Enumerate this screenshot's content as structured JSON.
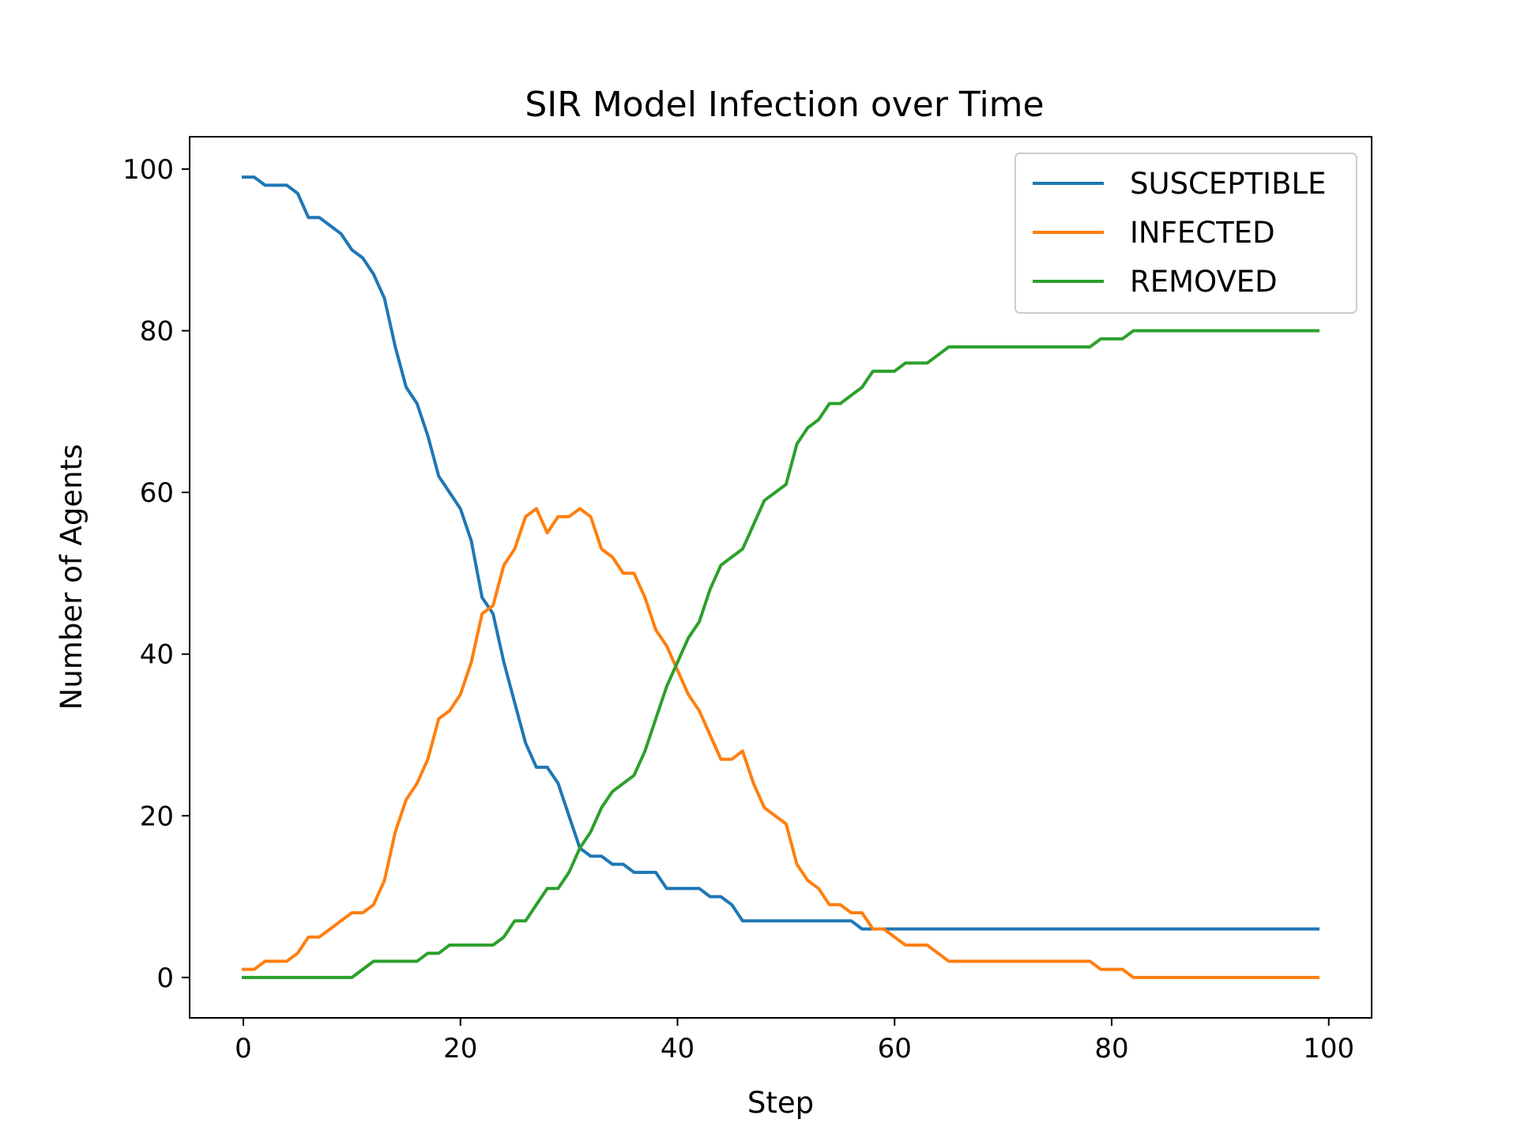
{
  "chart_data": {
    "type": "line",
    "title": "SIR Model Infection over Time",
    "xlabel": "Step",
    "ylabel": "Number of Agents",
    "xlim": [
      -4.95,
      103.95
    ],
    "ylim": [
      -5,
      104
    ],
    "xticks": [
      0,
      20,
      40,
      60,
      80,
      100
    ],
    "yticks": [
      0,
      20,
      40,
      60,
      80,
      100
    ],
    "grid": false,
    "legend_position": "top-right",
    "series": [
      {
        "name": "SUSCEPTIBLE",
        "color": "#1f77b4",
        "values": [
          99,
          99,
          98,
          98,
          98,
          97,
          94,
          94,
          93,
          92,
          90,
          89,
          87,
          84,
          78,
          73,
          71,
          67,
          62,
          60,
          58,
          54,
          47,
          45,
          39,
          34,
          29,
          26,
          26,
          24,
          20,
          16,
          15,
          15,
          14,
          14,
          13,
          13,
          13,
          11,
          11,
          11,
          11,
          10,
          10,
          9,
          7,
          7,
          7,
          7,
          7,
          7,
          7,
          7,
          7,
          7,
          7,
          6,
          6,
          6,
          6,
          6,
          6,
          6,
          6,
          6,
          6,
          6,
          6,
          6,
          6,
          6,
          6,
          6,
          6,
          6,
          6,
          6,
          6,
          6,
          6,
          6,
          6,
          6,
          6,
          6,
          6,
          6,
          6,
          6,
          6,
          6,
          6,
          6,
          6,
          6,
          6,
          6,
          6,
          6
        ]
      },
      {
        "name": "INFECTED",
        "color": "#ff7f0e",
        "values": [
          1,
          1,
          2,
          2,
          2,
          3,
          5,
          5,
          6,
          7,
          8,
          8,
          9,
          12,
          18,
          22,
          24,
          27,
          32,
          33,
          35,
          39,
          45,
          46,
          51,
          53,
          57,
          58,
          55,
          57,
          57,
          58,
          57,
          53,
          52,
          50,
          50,
          47,
          43,
          41,
          38,
          35,
          33,
          30,
          27,
          27,
          28,
          24,
          21,
          20,
          19,
          14,
          12,
          11,
          9,
          9,
          8,
          8,
          6,
          6,
          5,
          4,
          4,
          4,
          3,
          2,
          2,
          2,
          2,
          2,
          2,
          2,
          2,
          2,
          2,
          2,
          2,
          2,
          2,
          1,
          1,
          1,
          0,
          0,
          0,
          0,
          0,
          0,
          0,
          0,
          0,
          0,
          0,
          0,
          0,
          0,
          0,
          0,
          0,
          0
        ]
      },
      {
        "name": "REMOVED",
        "color": "#2ca02c",
        "values": [
          0,
          0,
          0,
          0,
          0,
          0,
          0,
          0,
          0,
          0,
          0,
          1,
          2,
          2,
          2,
          2,
          2,
          3,
          3,
          4,
          4,
          4,
          4,
          4,
          5,
          7,
          7,
          9,
          11,
          11,
          13,
          16,
          18,
          21,
          23,
          24,
          25,
          28,
          32,
          36,
          39,
          42,
          44,
          48,
          51,
          52,
          53,
          56,
          59,
          60,
          61,
          66,
          68,
          69,
          71,
          71,
          72,
          73,
          75,
          75,
          75,
          76,
          76,
          76,
          77,
          78,
          78,
          78,
          78,
          78,
          78,
          78,
          78,
          78,
          78,
          78,
          78,
          78,
          78,
          79,
          79,
          79,
          80,
          80,
          80,
          80,
          80,
          80,
          80,
          80,
          80,
          80,
          80,
          80,
          80,
          80,
          80,
          80,
          80,
          80
        ]
      }
    ]
  }
}
